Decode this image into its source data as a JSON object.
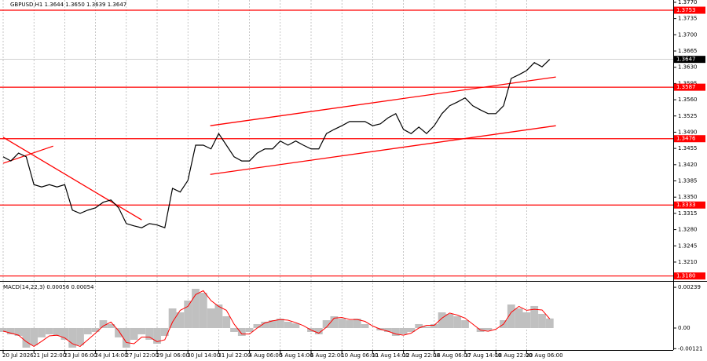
{
  "chart_data": [
    {
      "type": "line",
      "title": "GBPUSD,H1  1.3644 1.3650 1.3639 1.3647",
      "color": "#000000",
      "categories": [
        "20 Jul 2026",
        null,
        null,
        null,
        "21 Jul 22:00",
        null,
        null,
        null,
        "23 Jul 06:00",
        null,
        null,
        null,
        "24 Jul 14:00",
        null,
        null,
        null,
        "27 Jul 22:00",
        null,
        null,
        null,
        "29 Jul 06:00",
        null,
        null,
        null,
        "30 Jul 14:00",
        null,
        null,
        null,
        "31 Jul 22:00",
        null,
        null,
        null,
        "4 Aug 06:00",
        null,
        null,
        null,
        "5 Aug 14:00",
        null,
        null,
        null,
        "6 Aug 22:00",
        null,
        null,
        null,
        "10 Aug 06:00",
        null,
        null,
        null,
        "11 Aug 14:00",
        null,
        null,
        null,
        "12 Aug 22:00",
        null,
        null,
        null,
        "14 Aug 06:00",
        null,
        null,
        null,
        "17 Aug 14:00",
        null,
        null,
        null,
        "18 Aug 22:00",
        null,
        null,
        null,
        "20 Aug 06:00",
        null,
        null,
        null
      ],
      "values": [
        1.3437,
        1.3428,
        1.3445,
        1.3437,
        1.3377,
        1.3372,
        1.3377,
        1.3372,
        1.3377,
        1.3322,
        1.3315,
        1.3322,
        1.3327,
        1.3339,
        1.3344,
        1.3327,
        1.3293,
        1.3288,
        1.3284,
        1.3293,
        1.329,
        1.3284,
        1.3369,
        1.3361,
        1.3386,
        1.3462,
        1.3462,
        1.3454,
        1.3487,
        1.3462,
        1.3437,
        1.3428,
        1.3428,
        1.3445,
        1.3454,
        1.3454,
        1.3471,
        1.3462,
        1.3471,
        1.3462,
        1.3454,
        1.3454,
        1.3487,
        1.3496,
        1.3504,
        1.3513,
        1.3513,
        1.3513,
        1.3504,
        1.3508,
        1.3521,
        1.353,
        1.3496,
        1.3487,
        1.3501,
        1.3487,
        1.3504,
        1.353,
        1.3547,
        1.3555,
        1.3564,
        1.3547,
        1.3538,
        1.353,
        1.353,
        1.3547,
        1.3606,
        1.3614,
        1.3623,
        1.364,
        1.3631,
        1.3647
      ],
      "ylim": [
        1.3171,
        1.3775
      ],
      "yticks": [
        {
          "value": 1.377,
          "label": "1.3770"
        },
        1.3735,
        {
          "value": 1.37,
          "label": "1.3700"
        },
        1.3665,
        {
          "value": 1.363,
          "label": "1.3630"
        },
        1.3595,
        {
          "value": 1.356,
          "label": "1.3560"
        },
        1.3525,
        {
          "value": 1.349,
          "label": "1.3490"
        },
        1.3455,
        {
          "value": 1.342,
          "label": "1.3420"
        },
        1.3385,
        {
          "value": 1.335,
          "label": "1.3350"
        },
        1.3315,
        {
          "value": 1.328,
          "label": "1.3280"
        },
        1.3245,
        {
          "value": 1.321,
          "label": "1.3210"
        }
      ],
      "levels": [
        1.3753,
        1.3587,
        1.3476,
        1.3333,
        {
          "value": 1.318,
          "label": "1.3180"
        }
      ],
      "level_color": "#ff0000",
      "last_price": 1.3647,
      "trendlines": [
        {
          "x": [
            0,
            18
          ],
          "y": [
            1.3479,
            1.3301
          ]
        },
        {
          "x": [
            0,
            6.5
          ],
          "y": [
            1.3423,
            1.346
          ]
        },
        {
          "x": [
            26.9,
            71.8
          ],
          "y": [
            1.3504,
            1.3609
          ]
        },
        {
          "x": [
            26.9,
            71.8
          ],
          "y": [
            1.3399,
            1.3504
          ]
        }
      ],
      "grid": true
    },
    {
      "type": "bar",
      "title": "MACD(14,22,3) 0.00056 0.00054",
      "ylim": [
        -0.00129,
        0.00267
      ],
      "yticks": [
        0.00239,
        {
          "value": 0,
          "label": "0.00"
        },
        -0.00121
      ],
      "histogram": {
        "color": "#c0c0c0",
        "values": [
          -0.00023,
          -0.00037,
          -0.00046,
          -0.00115,
          -0.00101,
          -0.00055,
          -0.00037,
          -0.00046,
          -0.00069,
          -0.00115,
          -0.00101,
          -0.00037,
          -0.00023,
          0.00046,
          0.00023,
          -0.00055,
          -0.00115,
          -0.00069,
          -0.00037,
          -0.00069,
          -0.00092,
          -0.00046,
          0.00115,
          0.00092,
          0.00161,
          0.0023,
          0.00207,
          0.00115,
          0.00138,
          0.00069,
          -0.00023,
          -0.00046,
          -0.00023,
          0.00023,
          0.00037,
          0.00046,
          0.00055,
          0.00037,
          0.00028,
          0,
          -0.00023,
          -0.00037,
          0.00046,
          0.00069,
          0.00055,
          0.00046,
          0.00055,
          0.00023,
          0,
          -0.00014,
          -0.00023,
          -0.00046,
          -0.00037,
          -0.00023,
          0.00023,
          9e-05,
          0.00023,
          0.00092,
          0.00083,
          0.00069,
          0.00046,
          0,
          -0.00023,
          -0.00014,
          0,
          0.00046,
          0.00138,
          0.00115,
          0.00092,
          0.00129,
          0.00083,
          0.00056
        ]
      },
      "signal": {
        "color": "#ff0000",
        "values": [
          -0.00018,
          -0.0003,
          -0.00042,
          -0.0008,
          -0.00108,
          -0.00078,
          -0.00046,
          -0.00042,
          -0.00058,
          -0.00092,
          -0.00108,
          -0.00069,
          -0.0003,
          0.00012,
          0.00035,
          -0.00016,
          -0.00085,
          -0.00092,
          -0.00053,
          -0.00053,
          -0.0008,
          -0.00069,
          0.00035,
          0.00104,
          0.00127,
          0.00196,
          0.00219,
          0.00161,
          0.00127,
          0.00104,
          0.00023,
          -0.00035,
          -0.00035,
          0,
          0.0003,
          0.00042,
          0.0005,
          0.00046,
          0.00032,
          0.00014,
          -0.00012,
          -0.0003,
          5e-05,
          0.00058,
          0.00062,
          0.0005,
          0.0005,
          0.00039,
          0.00012,
          -7e-05,
          -0.00019,
          -0.00035,
          -0.00042,
          -0.0003,
          0,
          0.00016,
          0.00016,
          0.00058,
          0.00088,
          0.00076,
          0.00058,
          0.00023,
          -0.00012,
          -0.00019,
          -7e-05,
          0.00023,
          0.00092,
          0.00127,
          0.00104,
          0.0011,
          0.00106,
          0.00054
        ]
      }
    }
  ]
}
